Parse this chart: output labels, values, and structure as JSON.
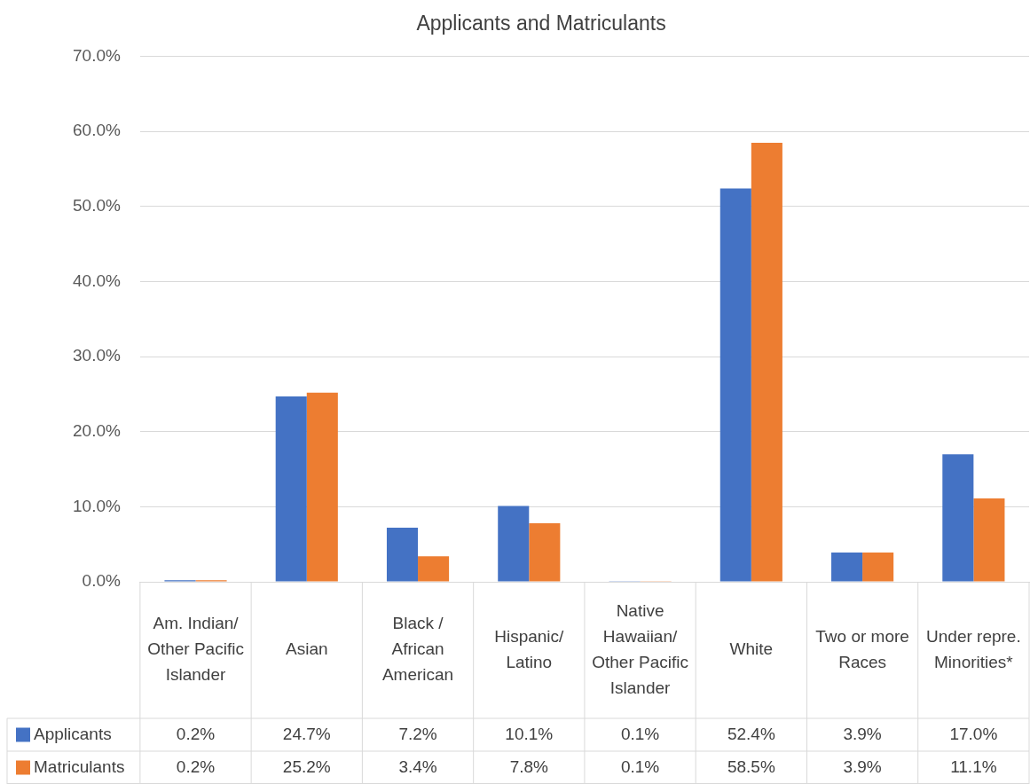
{
  "chart_data": {
    "type": "bar",
    "title": "Applicants and Matriculants",
    "categories": [
      "Am. Indian/ Other Pacific Islander",
      "Asian",
      "Black / African American",
      "Hispanic/ Latino",
      "Native Hawaiian/ Other Pacific Islander",
      "White",
      "Two or more Races",
      "Under repre. Minorities*"
    ],
    "series": [
      {
        "name": "Applicants",
        "color": "#4472c4",
        "values": [
          0.2,
          24.7,
          7.2,
          10.1,
          0.1,
          52.4,
          3.9,
          17.0
        ],
        "value_labels": [
          "0.2%",
          "24.7%",
          "7.2%",
          "10.1%",
          "0.1%",
          "52.4%",
          "3.9%",
          "17.0%"
        ]
      },
      {
        "name": "Matriculants",
        "color": "#ed7d31",
        "values": [
          0.2,
          25.2,
          3.4,
          7.8,
          0.1,
          58.5,
          3.9,
          11.1
        ],
        "value_labels": [
          "0.2%",
          "25.2%",
          "3.4%",
          "7.8%",
          "0.1%",
          "58.5%",
          "3.9%",
          "11.1%"
        ]
      }
    ],
    "ylim": [
      0,
      70
    ],
    "yticks": [
      {
        "value": 0,
        "label": "0.0%"
      },
      {
        "value": 10,
        "label": "10.0%"
      },
      {
        "value": 20,
        "label": "20.0%"
      },
      {
        "value": 30,
        "label": "30.0%"
      },
      {
        "value": 40,
        "label": "40.0%"
      },
      {
        "value": 50,
        "label": "50.0%"
      },
      {
        "value": 60,
        "label": "60.0%"
      },
      {
        "value": 70,
        "label": "70.0%"
      }
    ],
    "grid": "y",
    "legend": "bottom"
  }
}
